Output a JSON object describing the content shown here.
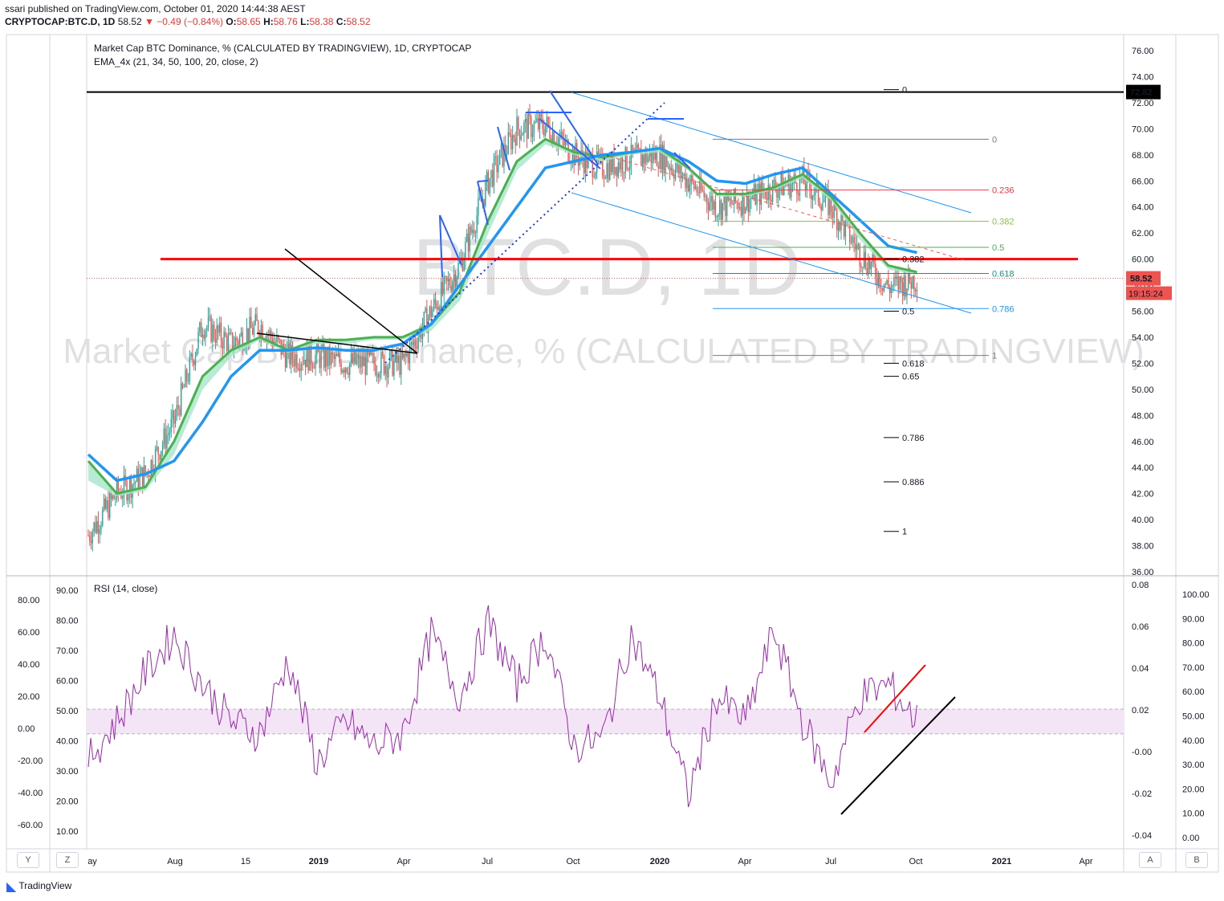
{
  "header": {
    "published": "ssari published on TradingView.com, October 01, 2020 14:44:38 AEST",
    "symbol": "CRYPTOCAP:BTC.D, 1D",
    "last": "58.52",
    "change": "▼ −0.49 (−0.84%)",
    "open": "58.65",
    "high": "58.76",
    "low": "58.38",
    "close": "58.52"
  },
  "main_pane": {
    "title": "Market Cap BTC Dominance, %  (CALCULATED BY TRADINGVIEW), 1D, CRYPTOCAP",
    "indicator": "EMA_4x (21, 34, 50, 100, 20, close, 2)",
    "watermark_symbol": "BTC.D, 1D",
    "watermark_title": "Market Cap BTC Dominance, % (CALCULATED BY TRADINGVIEW)",
    "price_ticks": [
      "76.00",
      "74.00",
      "72.00",
      "70.00",
      "68.00",
      "66.00",
      "64.00",
      "62.00",
      "60.00",
      "58.00",
      "56.00",
      "54.00",
      "52.00",
      "50.00",
      "48.00",
      "46.00",
      "44.00",
      "42.00",
      "40.00",
      "38.00",
      "36.00"
    ],
    "resistance_label": "72.82",
    "last_price_label": "58.52",
    "countdown": "19:15:24",
    "fib_right": {
      "levels": [
        "0",
        "0.236",
        "0.382",
        "0.5",
        "0.618",
        "0.786",
        "1"
      ],
      "values": [
        69.2,
        65.3,
        62.9,
        60.9,
        58.9,
        56.2,
        52.6
      ],
      "colors": [
        "#787b86",
        "#f23645",
        "#8bc34a",
        "#4caf50",
        "#089981",
        "#2196f3",
        "#787b86"
      ]
    },
    "fib_left": {
      "levels": [
        "0",
        "0.382",
        "0.5",
        "0.618",
        "0.65",
        "0.786",
        "0.886",
        "1"
      ],
      "values": [
        73.0,
        60.0,
        56.0,
        52.0,
        51.0,
        46.3,
        42.9,
        39.1
      ]
    }
  },
  "rsi_pane": {
    "title": "RSI (14, close)",
    "left_outer_ticks": [
      "80.00",
      "60.00",
      "40.00",
      "20.00",
      "0.00",
      "-20.00",
      "-40.00",
      "-60.00"
    ],
    "left_inner_ticks": [
      "90.00",
      "80.00",
      "70.00",
      "60.00",
      "50.00",
      "40.00",
      "30.00",
      "20.00",
      "10.00"
    ],
    "right_inner_ticks": [
      "0.08",
      "0.06",
      "0.04",
      "0.02",
      "-0.00",
      "-0.02",
      "-0.04"
    ],
    "right_outer_ticks": [
      "100.00",
      "90.00",
      "80.00",
      "70.00",
      "60.00",
      "50.00",
      "40.00",
      "30.00",
      "20.00",
      "10.00",
      "0.00"
    ],
    "band": [
      40,
      50
    ]
  },
  "time_axis": {
    "labels": [
      "ay",
      "Aug",
      "15",
      "2019",
      "Apr",
      "Jul",
      "Oct",
      "2020",
      "Apr",
      "Jul",
      "Oct",
      "2021",
      "Apr"
    ],
    "bold": [
      "2019",
      "2020",
      "2021"
    ]
  },
  "corners": {
    "left_outer": "Y",
    "left_inner": "Z",
    "right_inner": "A",
    "right_outer": "B"
  },
  "footer": {
    "brand": "TradingView"
  },
  "colors": {
    "up": "#26a69a",
    "down": "#ef5350",
    "ema_blue": "#2196f3",
    "ema_green": "#4caf50",
    "ribbon": "#a5e6c8",
    "rsi": "#9c27b0",
    "band": "#f3e5f5",
    "resistance": "#000000",
    "key_level": "#ff0000"
  },
  "chart_data": {
    "type": "line",
    "title": "Market Cap BTC Dominance, %  (CALCULATED BY TRADINGVIEW), 1D, CRYPTOCAP",
    "x": [
      "2018-05",
      "2018-06",
      "2018-07",
      "2018-08",
      "2018-09",
      "2018-10",
      "2018-11",
      "2018-12",
      "2019-01",
      "2019-02",
      "2019-03",
      "2019-04",
      "2019-05",
      "2019-06",
      "2019-07",
      "2019-08",
      "2019-09",
      "2019-10",
      "2019-11",
      "2019-12",
      "2020-01",
      "2020-02",
      "2020-03",
      "2020-04",
      "2020-05",
      "2020-06",
      "2020-07",
      "2020-08",
      "2020-09",
      "2020-10"
    ],
    "series": [
      {
        "values": [
          38.8,
          42.0,
          43.5,
          47.5,
          55.0,
          53.5,
          55.0,
          52.5,
          52.5,
          52.0,
          52.0,
          52.0,
          56.0,
          59.5,
          66.0,
          70.0,
          70.3,
          68.0,
          67.0,
          67.7,
          68.0,
          66.0,
          64.0,
          64.5,
          65.5,
          66.0,
          64.0,
          60.5,
          57.8,
          58.5
        ]
      },
      {
        "values": [
          44.5,
          42.0,
          42.5,
          46.0,
          51.0,
          53.0,
          54.0,
          53.0,
          53.8,
          53.8,
          54.0,
          54.0,
          55.0,
          57.5,
          63.0,
          67.5,
          69.2,
          68.2,
          67.8,
          68.2,
          68.5,
          67.0,
          65.0,
          65.0,
          65.5,
          66.5,
          64.8,
          62.0,
          59.5,
          59.0
        ]
      },
      {
        "values": [
          43.0,
          41.8,
          42.2,
          45.0,
          50.0,
          52.5,
          53.8,
          52.8,
          53.5,
          53.5,
          53.8,
          53.8,
          54.5,
          56.8,
          62.0,
          66.8,
          68.8,
          68.0,
          67.5,
          68.0,
          68.2,
          66.8,
          64.8,
          64.8,
          65.3,
          66.2,
          64.5,
          61.5,
          59.2,
          58.8
        ]
      },
      {
        "values": [
          45.0,
          43.0,
          43.5,
          44.5,
          47.5,
          51.0,
          53.0,
          53.0,
          53.2,
          53.0,
          53.0,
          53.5,
          55.0,
          58.0,
          61.0,
          64.0,
          67.0,
          67.5,
          68.0,
          68.2,
          68.5,
          67.5,
          66.0,
          65.8,
          66.5,
          67.0,
          65.0,
          63.0,
          61.0,
          60.5
        ]
      }
    ],
    "ylim": [
      36,
      76
    ],
    "rsi": {
      "x": [
        "2018-05",
        "2018-06",
        "2018-07",
        "2018-08",
        "2018-09",
        "2018-10",
        "2018-11",
        "2018-12",
        "2019-01",
        "2019-02",
        "2019-03",
        "2019-04",
        "2019-05",
        "2019-06",
        "2019-07",
        "2019-08",
        "2019-09",
        "2019-10",
        "2019-11",
        "2019-12",
        "2020-01",
        "2020-02",
        "2020-03",
        "2020-04",
        "2020-05",
        "2020-06",
        "2020-07",
        "2020-08",
        "2020-09",
        "2020-10"
      ],
      "values": [
        30,
        45,
        65,
        80,
        60,
        45,
        40,
        70,
        28,
        45,
        35,
        40,
        80,
        55,
        85,
        60,
        80,
        35,
        38,
        80,
        55,
        15,
        55,
        45,
        82,
        45,
        20,
        55,
        60,
        45
      ],
      "ylim": [
        0,
        100
      ]
    }
  }
}
